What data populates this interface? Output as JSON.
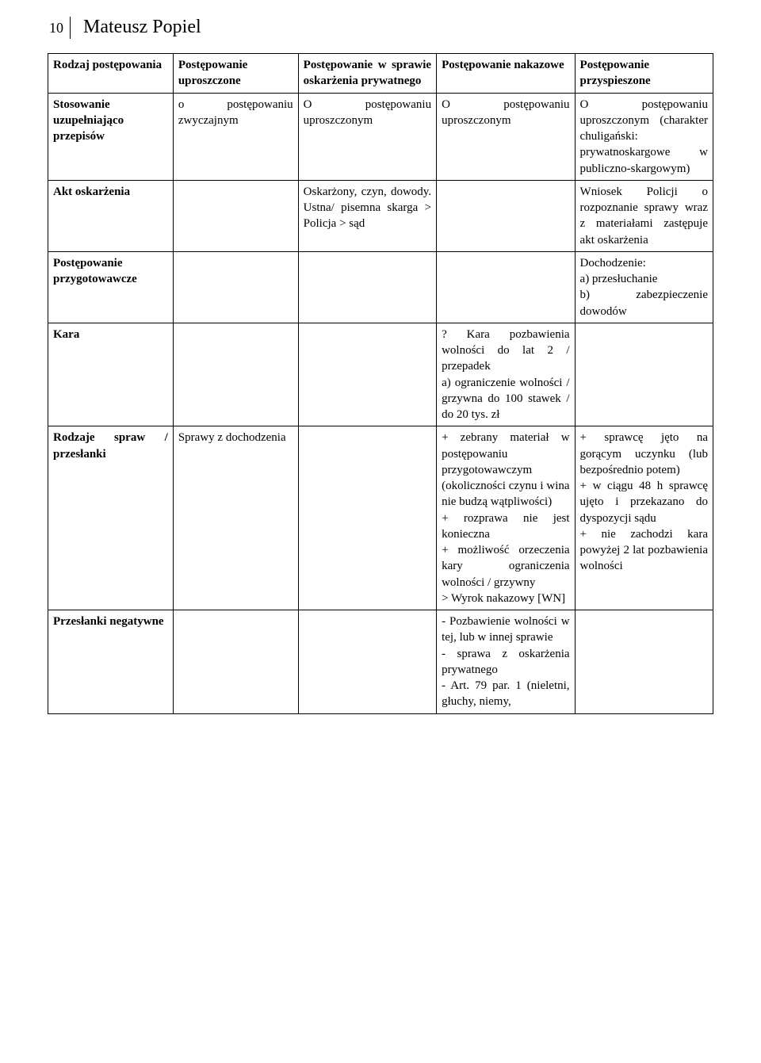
{
  "header": {
    "page_number": "10",
    "author": "Mateusz Popiel"
  },
  "table": {
    "headers": [
      "Rodzaj postępowania",
      "Postępowanie uproszczone",
      "Postępowanie w sprawie oskarżenia prywatnego",
      "Postępowanie nakazowe",
      "Postępowanie przyspieszone"
    ],
    "rows": [
      {
        "label": "Stosowanie uzupełniająco przepisów",
        "cells": [
          "o postępowaniu zwyczajnym",
          "O postępowaniu uproszczonym",
          "O postępowaniu uproszczonym",
          "O postępowaniu uproszczonym (charakter chuligański: prywatnoskargowe w publiczno-skargowym)"
        ]
      },
      {
        "label": "Akt oskarżenia",
        "cells": [
          "",
          "Oskarżony, czyn, dowody. Ustna/ pisemna skarga > Policja > sąd",
          "",
          "Wniosek Policji o rozpoznanie sprawy wraz z materiałami zastępuje akt oskarżenia"
        ]
      },
      {
        "label": "Postępowanie przygotowawcze",
        "cells": [
          "",
          "",
          "",
          "Dochodzenie:\na) przesłuchanie\nb) zabezpieczenie dowodów"
        ]
      },
      {
        "label": "Kara",
        "cells": [
          "",
          "",
          "? Kara pozbawienia wolności do lat 2 / przepadek\na) ograniczenie wolności / grzywna do 100 stawek / do 20 tys. zł",
          ""
        ]
      },
      {
        "label": "Rodzaje spraw / przesłanki",
        "cells": [
          "Sprawy z dochodzenia",
          "",
          "+ zebrany materiał w postępowaniu przygotowawczym (okoliczności czynu i wina nie budzą wątpliwości)\n+ rozprawa nie jest konieczna\n+ możliwość orzeczenia kary ograniczenia wolności / grzywny\n> Wyrok nakazowy [WN]",
          "+ sprawcę jęto na gorącym uczynku (lub bezpośrednio potem)\n+ w ciągu 48 h sprawcę ujęto i przekazano do dyspozycji sądu\n+ nie zachodzi kara powyżej 2 lat pozbawienia wolności"
        ]
      },
      {
        "label": "Przesłanki negatywne",
        "cells": [
          "",
          "",
          "- Pozbawienie wolności w tej, lub w innej sprawie\n- sprawa z oskarżenia prywatnego\n- Art. 79 par. 1 (nieletni, głuchy, niemy,",
          ""
        ]
      }
    ]
  }
}
